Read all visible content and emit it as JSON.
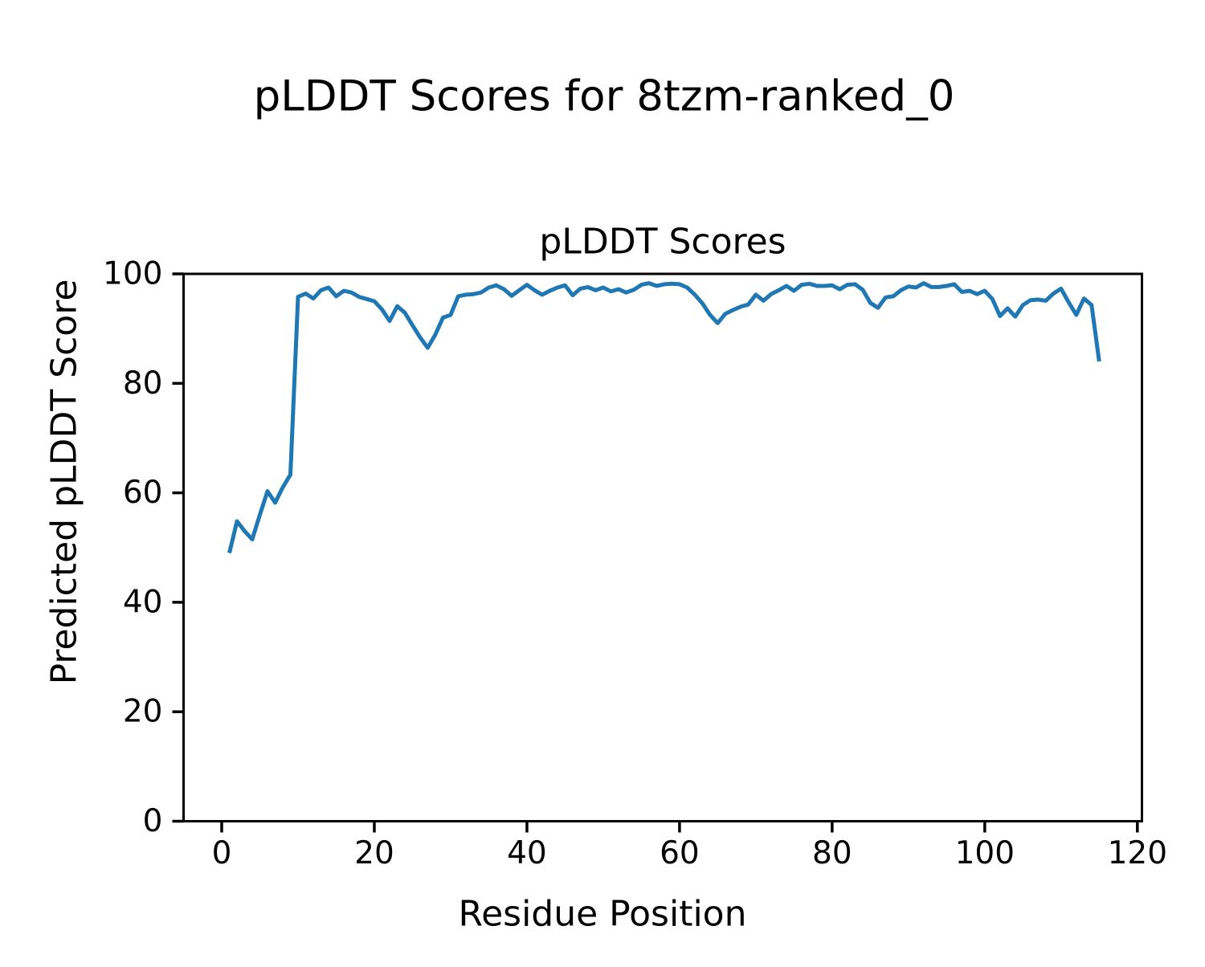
{
  "figure": {
    "suptitle": "pLDDT Scores for 8tzm-ranked_0",
    "background": "#ffffff"
  },
  "chart_data": {
    "type": "line",
    "title": "pLDDT Scores",
    "xlabel": "Residue Position",
    "ylabel": "Predicted pLDDT Score",
    "xticks": [
      0,
      20,
      40,
      60,
      80,
      100,
      120
    ],
    "yticks": [
      0,
      20,
      40,
      60,
      80,
      100
    ],
    "xlim": [
      -5,
      120.6
    ],
    "ylim": [
      0,
      100
    ],
    "grid": false,
    "legend": "none",
    "series": [
      {
        "name": "pLDDT",
        "color": "#1f77b4",
        "x_start": 1,
        "x_step": 1,
        "values": [
          49.0,
          54.8,
          53.0,
          51.5,
          56.0,
          60.3,
          58.2,
          61.0,
          63.3,
          95.8,
          96.4,
          95.5,
          97.0,
          97.5,
          95.9,
          96.9,
          96.6,
          95.8,
          95.4,
          95.0,
          93.5,
          91.4,
          94.1,
          92.9,
          90.6,
          88.4,
          86.5,
          88.9,
          92.0,
          92.5,
          95.9,
          96.2,
          96.3,
          96.6,
          97.5,
          97.9,
          97.2,
          96.0,
          97.0,
          98.0,
          97.0,
          96.2,
          96.9,
          97.5,
          97.9,
          96.1,
          97.3,
          97.6,
          97.0,
          97.5,
          96.8,
          97.2,
          96.6,
          97.1,
          98.0,
          98.3,
          97.8,
          98.1,
          98.2,
          98.1,
          97.5,
          96.2,
          94.6,
          92.5,
          91.0,
          92.7,
          93.4,
          94.0,
          94.4,
          96.2,
          95.1,
          96.3,
          97.0,
          97.8,
          96.9,
          98.0,
          98.2,
          97.8,
          97.8,
          97.9,
          97.2,
          98.0,
          98.1,
          97.1,
          94.7,
          93.8,
          95.7,
          95.9,
          97.0,
          97.7,
          97.5,
          98.3,
          97.6,
          97.6,
          97.8,
          98.1,
          96.7,
          96.9,
          96.3,
          96.9,
          95.4,
          92.3,
          93.7,
          92.2,
          94.3,
          95.2,
          95.3,
          95.1,
          96.4,
          97.3,
          94.8,
          92.5,
          95.5,
          94.3,
          84.0
        ]
      }
    ]
  }
}
